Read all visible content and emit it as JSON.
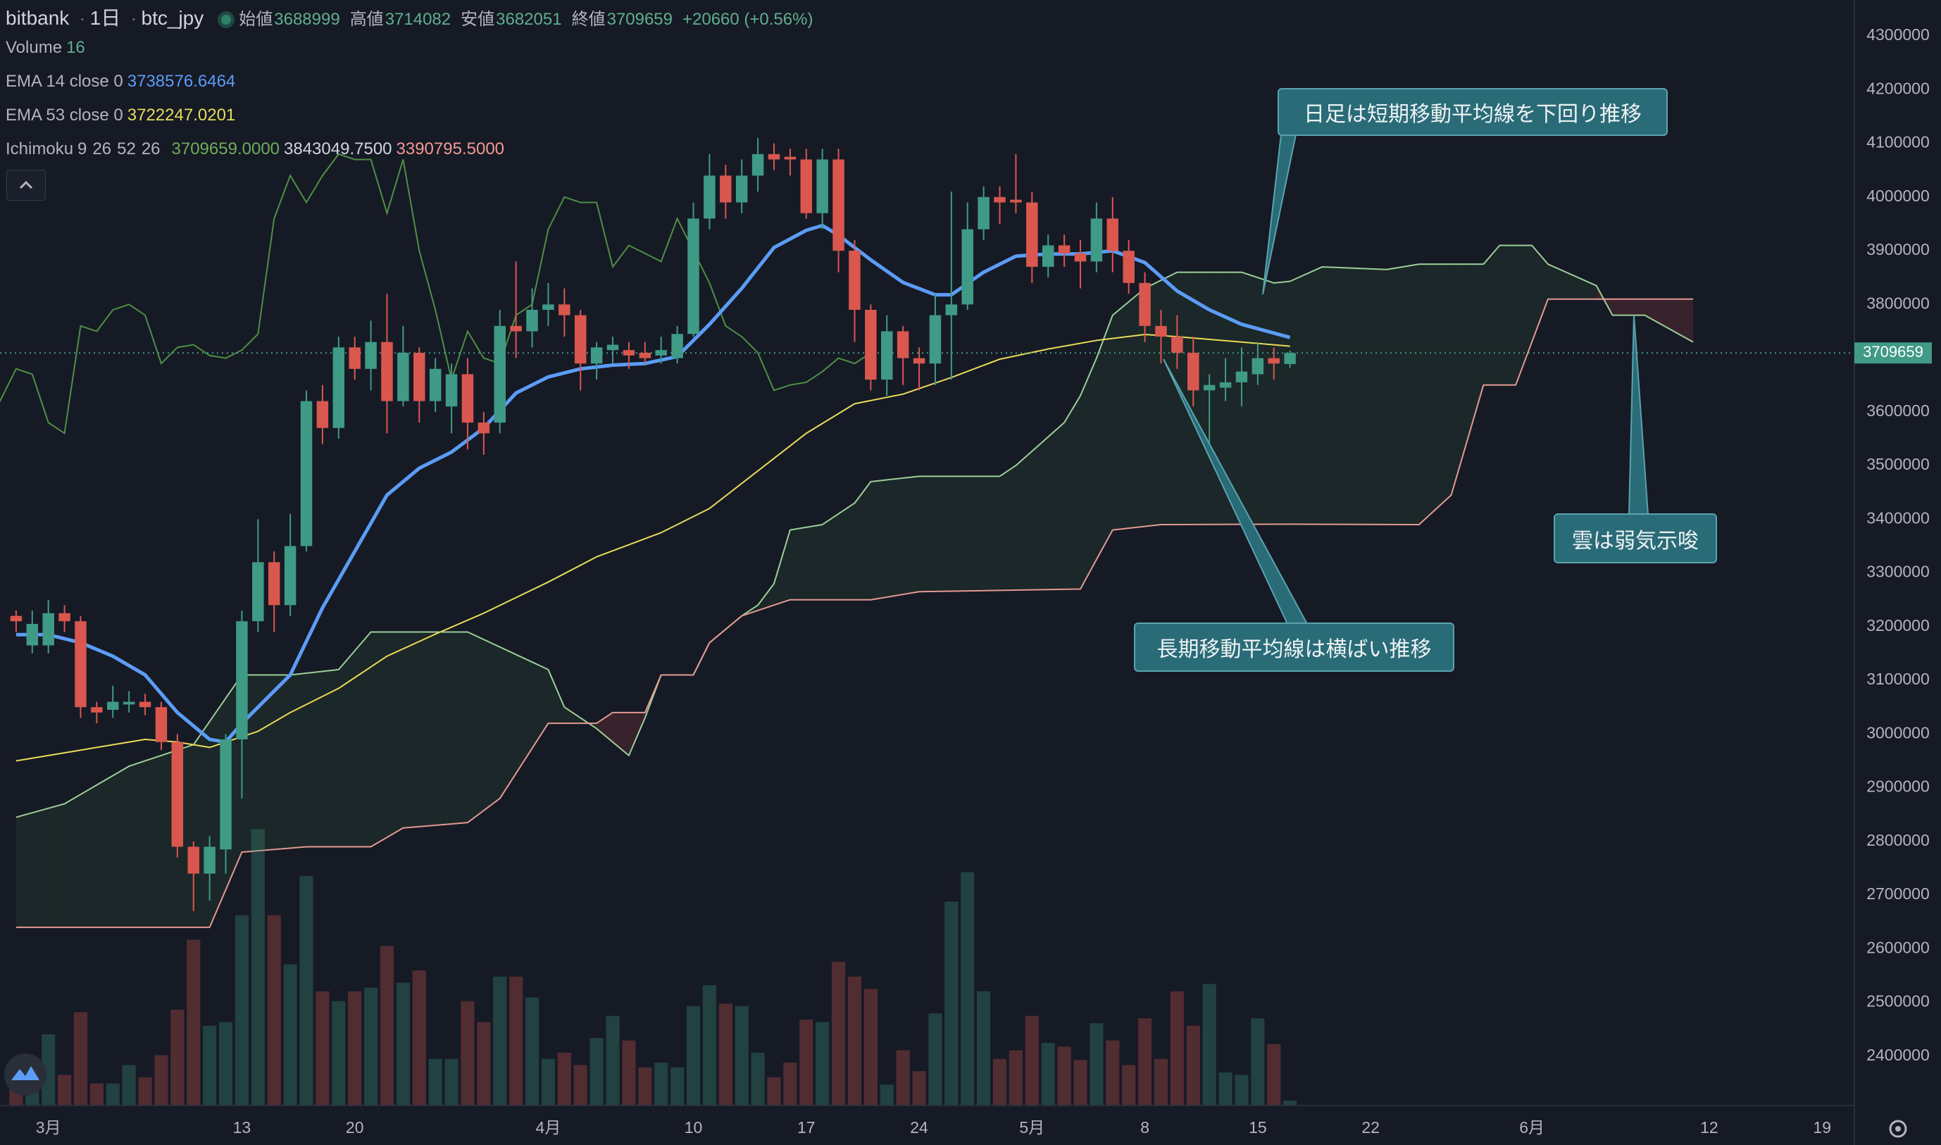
{
  "chart_data": {
    "type": "candlestick",
    "header": {
      "exchange": "bitbank",
      "interval": "1日",
      "symbol": "btc_jpy",
      "open_label": "始値",
      "high_label": "高値",
      "low_label": "安値",
      "close_label": "終値",
      "change": "+20660 (+0.56%)"
    },
    "up_color": "#3f9a86",
    "down_color": "#d9574e",
    "x": [
      "02-27",
      "02-28",
      "03-01",
      "03-02",
      "03-03",
      "03-04",
      "03-05",
      "03-06",
      "03-07",
      "03-08",
      "03-09",
      "03-10",
      "03-11",
      "03-12",
      "03-13",
      "03-14",
      "03-15",
      "03-16",
      "03-17",
      "03-18",
      "03-19",
      "03-20",
      "03-21",
      "03-22",
      "03-23",
      "03-24",
      "03-25",
      "03-26",
      "03-27",
      "03-28",
      "03-29",
      "03-30",
      "03-31",
      "04-01",
      "04-02",
      "04-03",
      "04-04",
      "04-05",
      "04-06",
      "04-07",
      "04-08",
      "04-09",
      "04-10",
      "04-11",
      "04-12",
      "04-13",
      "04-14",
      "04-15",
      "04-16",
      "04-17",
      "04-18",
      "04-19",
      "04-20",
      "04-21",
      "04-22",
      "04-23",
      "04-24",
      "04-25",
      "04-26",
      "04-27",
      "04-28",
      "04-29",
      "04-30",
      "05-01",
      "05-02",
      "05-03",
      "05-04",
      "05-05",
      "05-06",
      "05-07",
      "05-08",
      "05-09",
      "05-10",
      "05-11",
      "05-12",
      "05-13",
      "05-14",
      "05-15",
      "05-16",
      "05-17"
    ],
    "open": [
      3220000,
      3165000,
      3165000,
      3225000,
      3210000,
      3050000,
      3045000,
      3055000,
      3060000,
      3050000,
      2985000,
      2790000,
      2740000,
      2785000,
      2990000,
      3210000,
      3320000,
      3240000,
      3350000,
      3620000,
      3570000,
      3720000,
      3680000,
      3730000,
      3620000,
      3710000,
      3620000,
      3610000,
      3670000,
      3580000,
      3580000,
      3760000,
      3750000,
      3790000,
      3800000,
      3780000,
      3690000,
      3715000,
      3715000,
      3710000,
      3705000,
      3700000,
      3745000,
      3960000,
      4040000,
      3990000,
      4040000,
      4080000,
      4075000,
      4070000,
      3970000,
      4070000,
      3900000,
      3790000,
      3660000,
      3750000,
      3700000,
      3690000,
      3780000,
      3800000,
      3940000,
      4000000,
      3995000,
      3990000,
      3870000,
      3910000,
      3895000,
      3880000,
      3960000,
      3900000,
      3840000,
      3760000,
      3740000,
      3710000,
      3640000,
      3645000,
      3655000,
      3670000,
      3700000,
      3688999
    ],
    "high": [
      3230000,
      3230000,
      3250000,
      3240000,
      3220000,
      3060000,
      3090000,
      3080000,
      3075000,
      3060000,
      3000000,
      2800000,
      2810000,
      3000000,
      3230000,
      3400000,
      3340000,
      3410000,
      3640000,
      3650000,
      3740000,
      3740000,
      3770000,
      3820000,
      3760000,
      3720000,
      3700000,
      3690000,
      3700000,
      3600000,
      3790000,
      3880000,
      3830000,
      3840000,
      3830000,
      3790000,
      3730000,
      3740000,
      3730000,
      3730000,
      3740000,
      3760000,
      3990000,
      4080000,
      4060000,
      4070000,
      4110000,
      4100000,
      4090000,
      4090000,
      4090000,
      4090000,
      3920000,
      3800000,
      3780000,
      3760000,
      3720000,
      3820000,
      4010000,
      3990000,
      4020000,
      4020000,
      4080000,
      4010000,
      3930000,
      3930000,
      3920000,
      3990000,
      4000000,
      3920000,
      3860000,
      3790000,
      3780000,
      3740000,
      3670000,
      3700000,
      3720000,
      3730000,
      3720000,
      3714082
    ],
    "low": [
      3190000,
      3150000,
      3150000,
      3190000,
      3030000,
      3020000,
      3030000,
      3040000,
      3035000,
      2970000,
      2770000,
      2670000,
      2690000,
      2740000,
      2880000,
      3190000,
      3190000,
      3220000,
      3340000,
      3540000,
      3550000,
      3660000,
      3640000,
      3560000,
      3610000,
      3580000,
      3600000,
      3560000,
      3530000,
      3520000,
      3560000,
      3700000,
      3720000,
      3760000,
      3740000,
      3640000,
      3660000,
      3690000,
      3680000,
      3690000,
      3690000,
      3690000,
      3740000,
      3940000,
      3960000,
      3970000,
      4010000,
      4050000,
      4040000,
      3960000,
      3940000,
      3860000,
      3730000,
      3640000,
      3630000,
      3650000,
      3640000,
      3650000,
      3660000,
      3790000,
      3920000,
      3950000,
      3970000,
      3840000,
      3850000,
      3870000,
      3830000,
      3860000,
      3860000,
      3820000,
      3730000,
      3690000,
      3680000,
      3610000,
      3530000,
      3620000,
      3610000,
      3650000,
      3660000,
      3682051
    ],
    "close": [
      3210000,
      3205000,
      3225000,
      3210000,
      3050000,
      3040000,
      3060000,
      3060000,
      3050000,
      2985000,
      2790000,
      2740000,
      2790000,
      2990000,
      3210000,
      3320000,
      3240000,
      3350000,
      3620000,
      3570000,
      3720000,
      3680000,
      3730000,
      3620000,
      3710000,
      3620000,
      3680000,
      3670000,
      3580000,
      3560000,
      3760000,
      3750000,
      3790000,
      3800000,
      3780000,
      3690000,
      3720000,
      3725000,
      3705000,
      3700000,
      3715000,
      3745000,
      3960000,
      4040000,
      3990000,
      4040000,
      4080000,
      4070000,
      4070000,
      3970000,
      4070000,
      3900000,
      3790000,
      3660000,
      3750000,
      3700000,
      3690000,
      3780000,
      3800000,
      3940000,
      4000000,
      3990000,
      3990000,
      3870000,
      3910000,
      3895000,
      3880000,
      3960000,
      3900000,
      3840000,
      3760000,
      3740000,
      3710000,
      3640000,
      3650000,
      3655000,
      3675000,
      3700000,
      3690000,
      3709659
    ],
    "volume": {
      "name": "Volume",
      "values": [
        84,
        112,
        232,
        100,
        304,
        72,
        72,
        132,
        92,
        164,
        312,
        540,
        260,
        272,
        620,
        900,
        620,
        460,
        748,
        372,
        340,
        372,
        384,
        520,
        400,
        440,
        152,
        152,
        340,
        272,
        420,
        420,
        352,
        152,
        172,
        132,
        220,
        292,
        212,
        124,
        140,
        124,
        324,
        392,
        332,
        324,
        172,
        92,
        140,
        280,
        272,
        468,
        420,
        380,
        68,
        180,
        112,
        300,
        664,
        760,
        372,
        152,
        180,
        292,
        204,
        192,
        148,
        268,
        212,
        132,
        284,
        152,
        372,
        260,
        396,
        108,
        100,
        284,
        200,
        16
      ]
    },
    "ema": [
      {
        "name": "EMA 14 close 0",
        "legend_value": "3738576.6464",
        "color": "#5b9cf6",
        "x": [
          "02-27",
          "03-01",
          "03-03",
          "03-05",
          "03-07",
          "03-09",
          "03-11",
          "03-12",
          "03-13",
          "03-14",
          "03-16",
          "03-18",
          "03-20",
          "03-22",
          "03-24",
          "03-26",
          "03-28",
          "03-30",
          "04-01",
          "04-03",
          "04-05",
          "04-07",
          "04-09",
          "04-11",
          "04-13",
          "04-15",
          "04-17",
          "04-18",
          "04-19",
          "04-21",
          "04-23",
          "04-25",
          "04-26",
          "04-28",
          "04-30",
          "05-02",
          "05-04",
          "05-06",
          "05-08",
          "05-10",
          "05-12",
          "05-14",
          "05-17"
        ],
        "values": [
          3185000,
          3185000,
          3170000,
          3145000,
          3110000,
          3040000,
          2990000,
          2985000,
          3020000,
          3050000,
          3110000,
          3235000,
          3340000,
          3445000,
          3495000,
          3525000,
          3570000,
          3635000,
          3665000,
          3680000,
          3687000,
          3690000,
          3703000,
          3763000,
          3830000,
          3906000,
          3938000,
          3947000,
          3929000,
          3883000,
          3841000,
          3818000,
          3818000,
          3860000,
          3890000,
          3894000,
          3894000,
          3900000,
          3878000,
          3825000,
          3790000,
          3763000,
          3738577
        ]
      },
      {
        "name": "EMA 53 close 0",
        "legend_value": "3722247.0201",
        "color": "#e8dc58",
        "x": [
          "02-27",
          "03-03",
          "03-07",
          "03-09",
          "03-11",
          "03-14",
          "03-16",
          "03-19",
          "03-22",
          "03-25",
          "03-28",
          "04-01",
          "04-04",
          "04-08",
          "04-11",
          "04-14",
          "04-17",
          "04-20",
          "04-23",
          "04-26",
          "04-29",
          "05-02",
          "05-05",
          "05-08",
          "05-10",
          "05-14",
          "05-17"
        ],
        "values": [
          2950000,
          2970000,
          2990000,
          2985000,
          2975000,
          3005000,
          3040000,
          3085000,
          3145000,
          3186000,
          3225000,
          3283000,
          3330000,
          3375000,
          3420000,
          3490000,
          3560000,
          3615000,
          3633000,
          3664000,
          3698000,
          3717000,
          3733000,
          3744000,
          3740000,
          3730000,
          3722247
        ]
      }
    ],
    "ichimoku": {
      "name": "Ichimoku",
      "params": [
        9,
        26,
        52,
        26
      ],
      "legend_values": [
        "3709659.0000",
        "3843049.7500",
        "3390795.5000"
      ],
      "lagging_color": "#4f8f45",
      "cloud_up_color": "rgba(76,175,80,0.09)",
      "cloud_down_color": "rgba(239,83,80,0.16)",
      "lead_a": {
        "color": "#9ccf98",
        "x": [
          "02-27",
          "03-02",
          "03-06",
          "03-10",
          "03-13",
          "03-16",
          "03-19",
          "03-21",
          "03-27",
          "04-01",
          "04-02",
          "04-04",
          "04-06",
          "04-07",
          "04-08",
          "04-10",
          "04-11",
          "04-13",
          "04-14",
          "04-15",
          "04-16",
          "04-18",
          "04-20",
          "04-21",
          "04-24",
          "04-29",
          "04-30",
          "05-03",
          "05-04",
          "05-05",
          "05-06",
          "05-08",
          "05-10",
          "05-14",
          "05-16",
          "05-17",
          "05-19",
          "05-23",
          "05-25",
          "05-29",
          "05-30",
          "06-01",
          "06-02",
          "06-05",
          "06-06",
          "06-08",
          "06-11"
        ],
        "values": [
          2845000,
          2870000,
          2940000,
          2980000,
          3110000,
          3110000,
          3120000,
          3190000,
          3190000,
          3120000,
          3050000,
          3010000,
          2960000,
          3030000,
          3110000,
          3110000,
          3170000,
          3220000,
          3240000,
          3280000,
          3380000,
          3390000,
          3430000,
          3470000,
          3480000,
          3480000,
          3500000,
          3580000,
          3630000,
          3700000,
          3780000,
          3830000,
          3860000,
          3860000,
          3840000,
          3843050,
          3870000,
          3865000,
          3875000,
          3875000,
          3910000,
          3910000,
          3875000,
          3835000,
          3780000,
          3780000,
          3730000
        ]
      },
      "lead_b": {
        "color": "#e39a92",
        "x": [
          "02-27",
          "03-11",
          "03-13",
          "03-17",
          "03-21",
          "03-23",
          "03-27",
          "03-29",
          "04-01",
          "04-04",
          "04-05",
          "04-07",
          "04-08",
          "04-10",
          "04-11",
          "04-13",
          "04-16",
          "04-21",
          "04-24",
          "05-04",
          "05-06",
          "05-09",
          "05-17",
          "05-25",
          "05-27",
          "05-29",
          "05-31",
          "06-02",
          "06-11"
        ],
        "values": [
          2640000,
          2640000,
          2780000,
          2790000,
          2790000,
          2825000,
          2835000,
          2880000,
          3020000,
          3020000,
          3040000,
          3040000,
          3110000,
          3110000,
          3170000,
          3220000,
          3250000,
          3250000,
          3265000,
          3270000,
          3380000,
          3390000,
          3390796,
          3390000,
          3445000,
          3650000,
          3650000,
          3810000,
          3810000
        ]
      }
    },
    "xlim": [
      "02-26",
      "06-21"
    ],
    "xticks": [
      {
        "value": "03-01",
        "label": "3月"
      },
      {
        "value": "03-13",
        "label": "13"
      },
      {
        "value": "03-20",
        "label": "20"
      },
      {
        "value": "04-01",
        "label": "4月"
      },
      {
        "value": "04-10",
        "label": "10"
      },
      {
        "value": "04-17",
        "label": "17"
      },
      {
        "value": "04-24",
        "label": "24"
      },
      {
        "value": "05-01",
        "label": "5月"
      },
      {
        "value": "05-08",
        "label": "8"
      },
      {
        "value": "05-15",
        "label": "15"
      },
      {
        "value": "05-22",
        "label": "22"
      },
      {
        "value": "06-01",
        "label": "6月"
      },
      {
        "value": "06-12",
        "label": "12"
      },
      {
        "value": "06-19",
        "label": "19"
      }
    ],
    "ylim": [
      2308000,
      4367000
    ],
    "yticks": [
      2400000,
      2500000,
      2600000,
      2700000,
      2800000,
      2900000,
      3000000,
      3100000,
      3200000,
      3300000,
      3400000,
      3500000,
      3600000,
      3700000,
      3800000,
      3900000,
      4000000,
      4100000,
      4200000,
      4300000
    ],
    "annotations": [
      {
        "text": "日足は短期移動平均線を下回り推移"
      },
      {
        "text": "長期移動平均線は横ばい推移"
      },
      {
        "text": "雲は弱気示唆"
      }
    ]
  }
}
